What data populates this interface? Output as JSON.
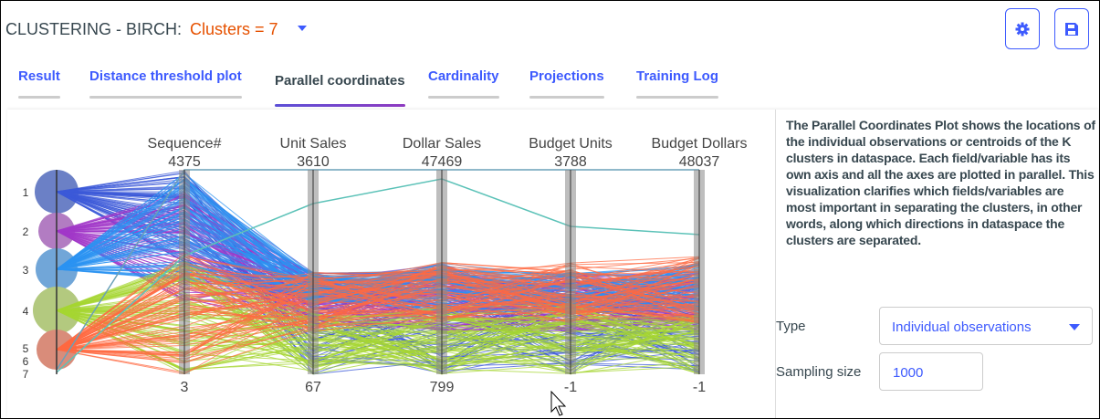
{
  "header": {
    "title": "CLUSTERING - BIRCH:",
    "clusters_label": "Clusters = 7",
    "settings_icon": "gear-icon",
    "save_icon": "floppy-disk-icon"
  },
  "tabs": [
    {
      "label": "Result"
    },
    {
      "label": "Distance threshold plot"
    },
    {
      "label": "Parallel coordinates",
      "active": true
    },
    {
      "label": "Cardinality"
    },
    {
      "label": "Projections"
    },
    {
      "label": "Training Log"
    }
  ],
  "plot": {
    "axes": [
      {
        "name": "Sequence#",
        "max": "4375",
        "min": "3"
      },
      {
        "name": "Unit Sales",
        "max": "3610",
        "min": "67"
      },
      {
        "name": "Dollar Sales",
        "max": "47469",
        "min": "799"
      },
      {
        "name": "Budget Units",
        "max": "3788",
        "min": "-1"
      },
      {
        "name": "Budget Dollars",
        "max": "48037",
        "min": "-1"
      }
    ],
    "clusters": [
      {
        "label": "1",
        "circle": "#6b80c6",
        "line": "#3c5ad8"
      },
      {
        "label": "2",
        "circle": "#b27cc2",
        "line": "#a238c8"
      },
      {
        "label": "3",
        "circle": "#71a6d8",
        "line": "#2b93f2"
      },
      {
        "label": "4",
        "circle": "#b3c97f",
        "line": "#a6d632"
      },
      {
        "label": "5",
        "circle": "#d98c7a",
        "line": "#ff6a42"
      },
      {
        "label": "6",
        "circle": "#8aa0b0",
        "line": "#6aa0b8"
      },
      {
        "label": "7",
        "circle": "#5cc2b8",
        "line": "#5cc2b8"
      }
    ]
  },
  "description": "The Parallel Coordinates Plot shows the locations of the individual observations or centroids of the K clusters in dataspace. Each field/variable has its own axis and all the axes are plotted in parallel. This visualization clarifies which fields/variables are most important in separating the clusters, in other words, along which directions in dataspace the clusters are separated.",
  "controls": {
    "type_label": "Type",
    "type_value": "Individual observations",
    "sampling_label": "Sampling size",
    "sampling_value": "1000"
  }
}
